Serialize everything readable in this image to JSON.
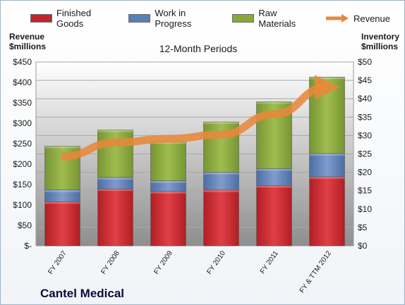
{
  "company": "Cantel Medical",
  "chart_data": {
    "type": "bar",
    "stacked": true,
    "subtitle": "12-Month Periods",
    "ylabel": "Inventory\n$millions",
    "y2label": "Revenue\n$millions",
    "categories": [
      "FY 2007",
      "FY 2008",
      "FY 2009",
      "FY 2010",
      "FY 2011",
      "FY & TTM 2012"
    ],
    "series": [
      {
        "name": "Finished Goods",
        "axis": "right",
        "values": [
          12,
          15.5,
          14.8,
          15.2,
          16.4,
          18.8
        ],
        "color": "#c0262b"
      },
      {
        "name": "Work in Progress",
        "axis": "right",
        "values": [
          3.2,
          3.1,
          2.9,
          4.8,
          4.6,
          6.3
        ],
        "color": "#5b7fb8"
      },
      {
        "name": "Raw Materials",
        "axis": "right",
        "values": [
          11.9,
          12.9,
          10.6,
          13.7,
          18.2,
          20.8
        ],
        "color": "#8aa83a"
      },
      {
        "name": "Revenue",
        "axis": "left",
        "type": "line-arrow",
        "values": [
          218,
          253,
          262,
          272,
          322,
          388
        ],
        "color": "#e8883a"
      }
    ],
    "y_left": {
      "min": 0,
      "max": 450,
      "step": 50,
      "tick_labels": [
        "$-",
        "$50",
        "$100",
        "$150",
        "$200",
        "$250",
        "$300",
        "$350",
        "$400",
        "$450"
      ]
    },
    "y_right": {
      "min": 0,
      "max": 50,
      "step": 5,
      "tick_labels": [
        "$0",
        "$5",
        "$10",
        "$15",
        "$20",
        "$25",
        "$30",
        "$35",
        "$40",
        "$45",
        "$50"
      ]
    },
    "legend": {
      "position": "top"
    },
    "grid": true
  }
}
